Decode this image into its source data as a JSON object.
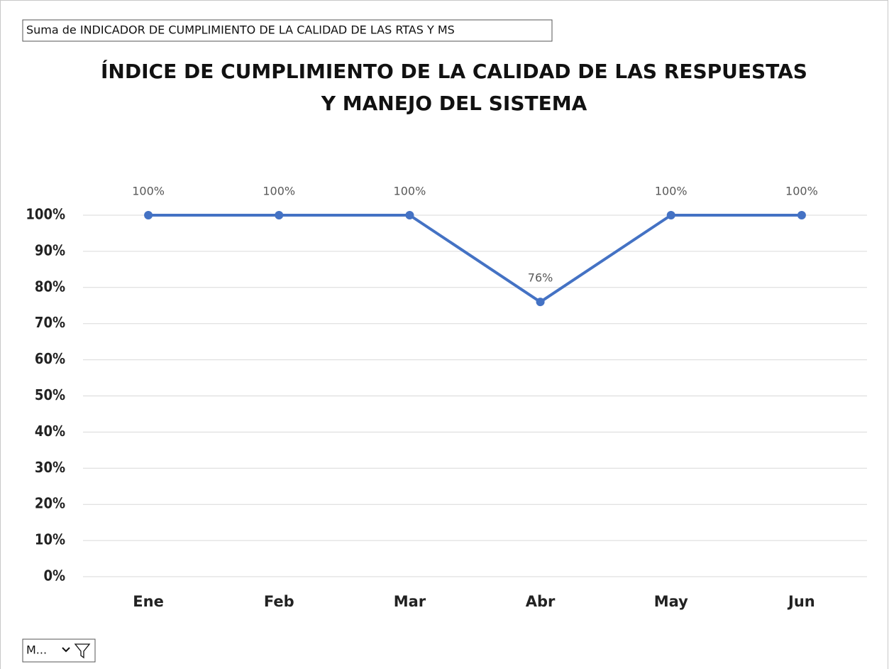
{
  "chart_data": {
    "type": "line",
    "field_button": "Suma de INDICADOR DE CUMPLIMIENTO DE LA CALIDAD DE LAS RTAS Y MS",
    "axis_field_button": "M...",
    "title": [
      "ÍNDICE DE CUMPLIMIENTO DE LA CALIDAD DE LAS RESPUESTAS",
      "Y MANEJO DEL SISTEMA"
    ],
    "categories": [
      "Ene",
      "Feb",
      "Mar",
      "Abr",
      "May",
      "Jun"
    ],
    "values": [
      100,
      100,
      100,
      76,
      100,
      100
    ],
    "value_labels": [
      "100%",
      "100%",
      "100%",
      "76%",
      "100%",
      "100%"
    ],
    "color": "#4472c4",
    "ylim": [
      0,
      100
    ],
    "yticks": [
      {
        "value": 0,
        "label": "0%"
      },
      {
        "value": 10,
        "label": "10%"
      },
      {
        "value": 20,
        "label": "20%"
      },
      {
        "value": 30,
        "label": "30%"
      },
      {
        "value": 40,
        "label": "40%"
      },
      {
        "value": 50,
        "label": "50%"
      },
      {
        "value": 60,
        "label": "60%"
      },
      {
        "value": 70,
        "label": "70%"
      },
      {
        "value": 80,
        "label": "80%"
      },
      {
        "value": 90,
        "label": "90%"
      },
      {
        "value": 100,
        "label": "100%"
      }
    ],
    "grid": true
  }
}
